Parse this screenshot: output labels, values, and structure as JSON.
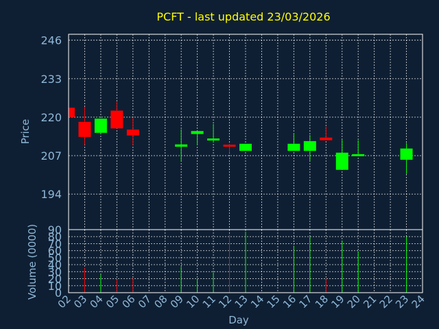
{
  "chart_data": {
    "type": "candlestick",
    "title": "PCFT - last updated 23/03/2026",
    "xlabel": "Day",
    "ylabel_price": "Price",
    "ylabel_volume": "Volume (0000)",
    "price_yticks": [
      194,
      207,
      220,
      233,
      246
    ],
    "price_ylim": [
      182,
      248
    ],
    "volume_yticks": [
      0,
      10,
      20,
      30,
      40,
      50,
      60,
      70,
      80,
      90
    ],
    "volume_ylim": [
      0,
      90
    ],
    "grid": true,
    "days": [
      "02",
      "03",
      "04",
      "05",
      "06",
      "07",
      "08",
      "09",
      "10",
      "11",
      "12",
      "13",
      "14",
      "15",
      "16",
      "17",
      "18",
      "19",
      "20",
      "21",
      "22",
      "23",
      "24"
    ],
    "candles": [
      {
        "day": "02",
        "open": 223.2,
        "close": 220.0,
        "high": 223.2,
        "low": 220.0,
        "volume": 0
      },
      {
        "day": "03",
        "open": 218.4,
        "close": 213.3,
        "high": 223.5,
        "low": 210.7,
        "volume": 35
      },
      {
        "day": "04",
        "open": 214.7,
        "close": 219.5,
        "high": 219.5,
        "low": 214.7,
        "volume": 26
      },
      {
        "day": "05",
        "open": 222.2,
        "close": 216.2,
        "high": 225.2,
        "low": 216.2,
        "volume": 19
      },
      {
        "day": "06",
        "open": 215.8,
        "close": 213.8,
        "high": 219.9,
        "low": 210.6,
        "volume": 21
      },
      {
        "day": "09",
        "open": 210.0,
        "close": 210.8,
        "high": 215.9,
        "low": 205.2,
        "volume": 37
      },
      {
        "day": "10",
        "open": 214.3,
        "close": 215.3,
        "high": 215.3,
        "low": 210.5,
        "volume": 20
      },
      {
        "day": "11",
        "open": 212.5,
        "close": 212.8,
        "high": 217.7,
        "low": 211.4,
        "volume": 29
      },
      {
        "day": "12",
        "open": 210.7,
        "close": 210.1,
        "high": 211.0,
        "low": 207.9,
        "volume": 83
      },
      {
        "day": "13",
        "open": 208.6,
        "close": 211.0,
        "high": 211.0,
        "low": 208.6,
        "volume": 87
      },
      {
        "day": "16",
        "open": 208.6,
        "close": 211.0,
        "high": 214.6,
        "low": 208.6,
        "volume": 67
      },
      {
        "day": "17",
        "open": 208.6,
        "close": 211.9,
        "high": 214.0,
        "low": 205.3,
        "volume": 80
      },
      {
        "day": "18",
        "open": 213.1,
        "close": 212.2,
        "high": 216.8,
        "low": 212.2,
        "volume": 20
      },
      {
        "day": "19",
        "open": 202.2,
        "close": 208.0,
        "high": 212.3,
        "low": 202.2,
        "volume": 74
      },
      {
        "day": "20",
        "open": 206.9,
        "close": 207.5,
        "high": 212.2,
        "low": 206.9,
        "volume": 59
      },
      {
        "day": "23",
        "open": 205.6,
        "close": 209.4,
        "high": 211.3,
        "low": 200.8,
        "volume": 80
      }
    ],
    "colors": {
      "up": "#00ff00",
      "down": "#ff0000",
      "title": "#ffff00",
      "text": "#8fb8d8",
      "background": "#0f1f33"
    }
  }
}
